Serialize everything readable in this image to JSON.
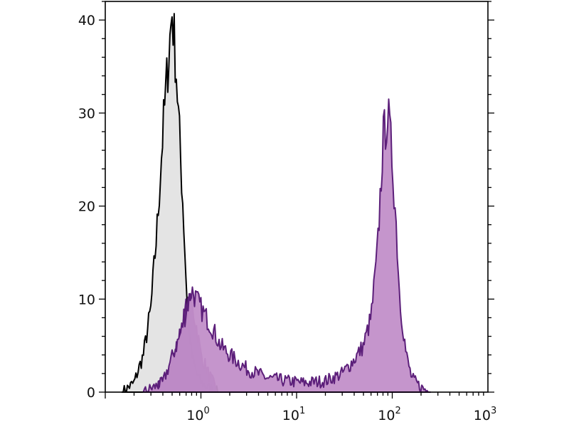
{
  "chart_data": {
    "type": "area",
    "title": "",
    "xlabel": "",
    "ylabel": "",
    "x_scale": "log",
    "xlim": [
      0.1,
      1000
    ],
    "ylim": [
      0,
      42
    ],
    "grid": false,
    "legend": "none",
    "x_ticks": [
      {
        "base": "10",
        "exp": "0",
        "value": 1
      },
      {
        "base": "10",
        "exp": "1",
        "value": 10
      },
      {
        "base": "10",
        "exp": "2",
        "value": 100
      },
      {
        "base": "10",
        "exp": "3",
        "value": 1000
      }
    ],
    "y_ticks": [
      {
        "label": "0",
        "value": 0
      },
      {
        "label": "10",
        "value": 10
      },
      {
        "label": "20",
        "value": 20
      },
      {
        "label": "30",
        "value": 30
      },
      {
        "label": "40",
        "value": 40
      }
    ],
    "series": [
      {
        "fill": "#e4e4e4",
        "stroke": "#000000",
        "x": [
          0.15,
          0.2,
          0.25,
          0.3,
          0.35,
          0.4,
          0.45,
          0.5,
          0.55,
          0.6,
          0.65,
          0.7,
          0.75,
          0.8,
          0.9,
          1.0,
          1.2,
          1.5
        ],
        "y": [
          0,
          1,
          4,
          9,
          18,
          28,
          35,
          41,
          35,
          27,
          20,
          12,
          7,
          4,
          2,
          1,
          0.5,
          0
        ]
      },
      {
        "fill": "#5c1f7a",
        "stroke": "#5c1f7a",
        "x": [
          0.3,
          0.4,
          0.5,
          0.6,
          0.7,
          0.8,
          0.9,
          1.0,
          1.2,
          1.5
        ],
        "y": [
          0,
          1,
          3,
          6,
          9,
          9.5,
          7,
          4,
          2,
          0
        ]
      },
      {
        "fill": "#c28fc9",
        "stroke": "#5c1f7a",
        "x": [
          0.25,
          0.4,
          0.6,
          0.8,
          1.0,
          1.3,
          1.6,
          2,
          3,
          5,
          8,
          12,
          20,
          30,
          40,
          50,
          60,
          70,
          80,
          90,
          100,
          110,
          120,
          140,
          160,
          200,
          250
        ],
        "y": [
          0,
          1,
          6,
          11,
          9,
          7,
          5,
          4,
          2.5,
          1.5,
          1.2,
          1,
          1.2,
          2,
          3.5,
          5,
          8,
          15,
          27,
          30,
          25,
          18,
          10,
          4,
          1.5,
          0.5,
          0
        ]
      }
    ]
  }
}
